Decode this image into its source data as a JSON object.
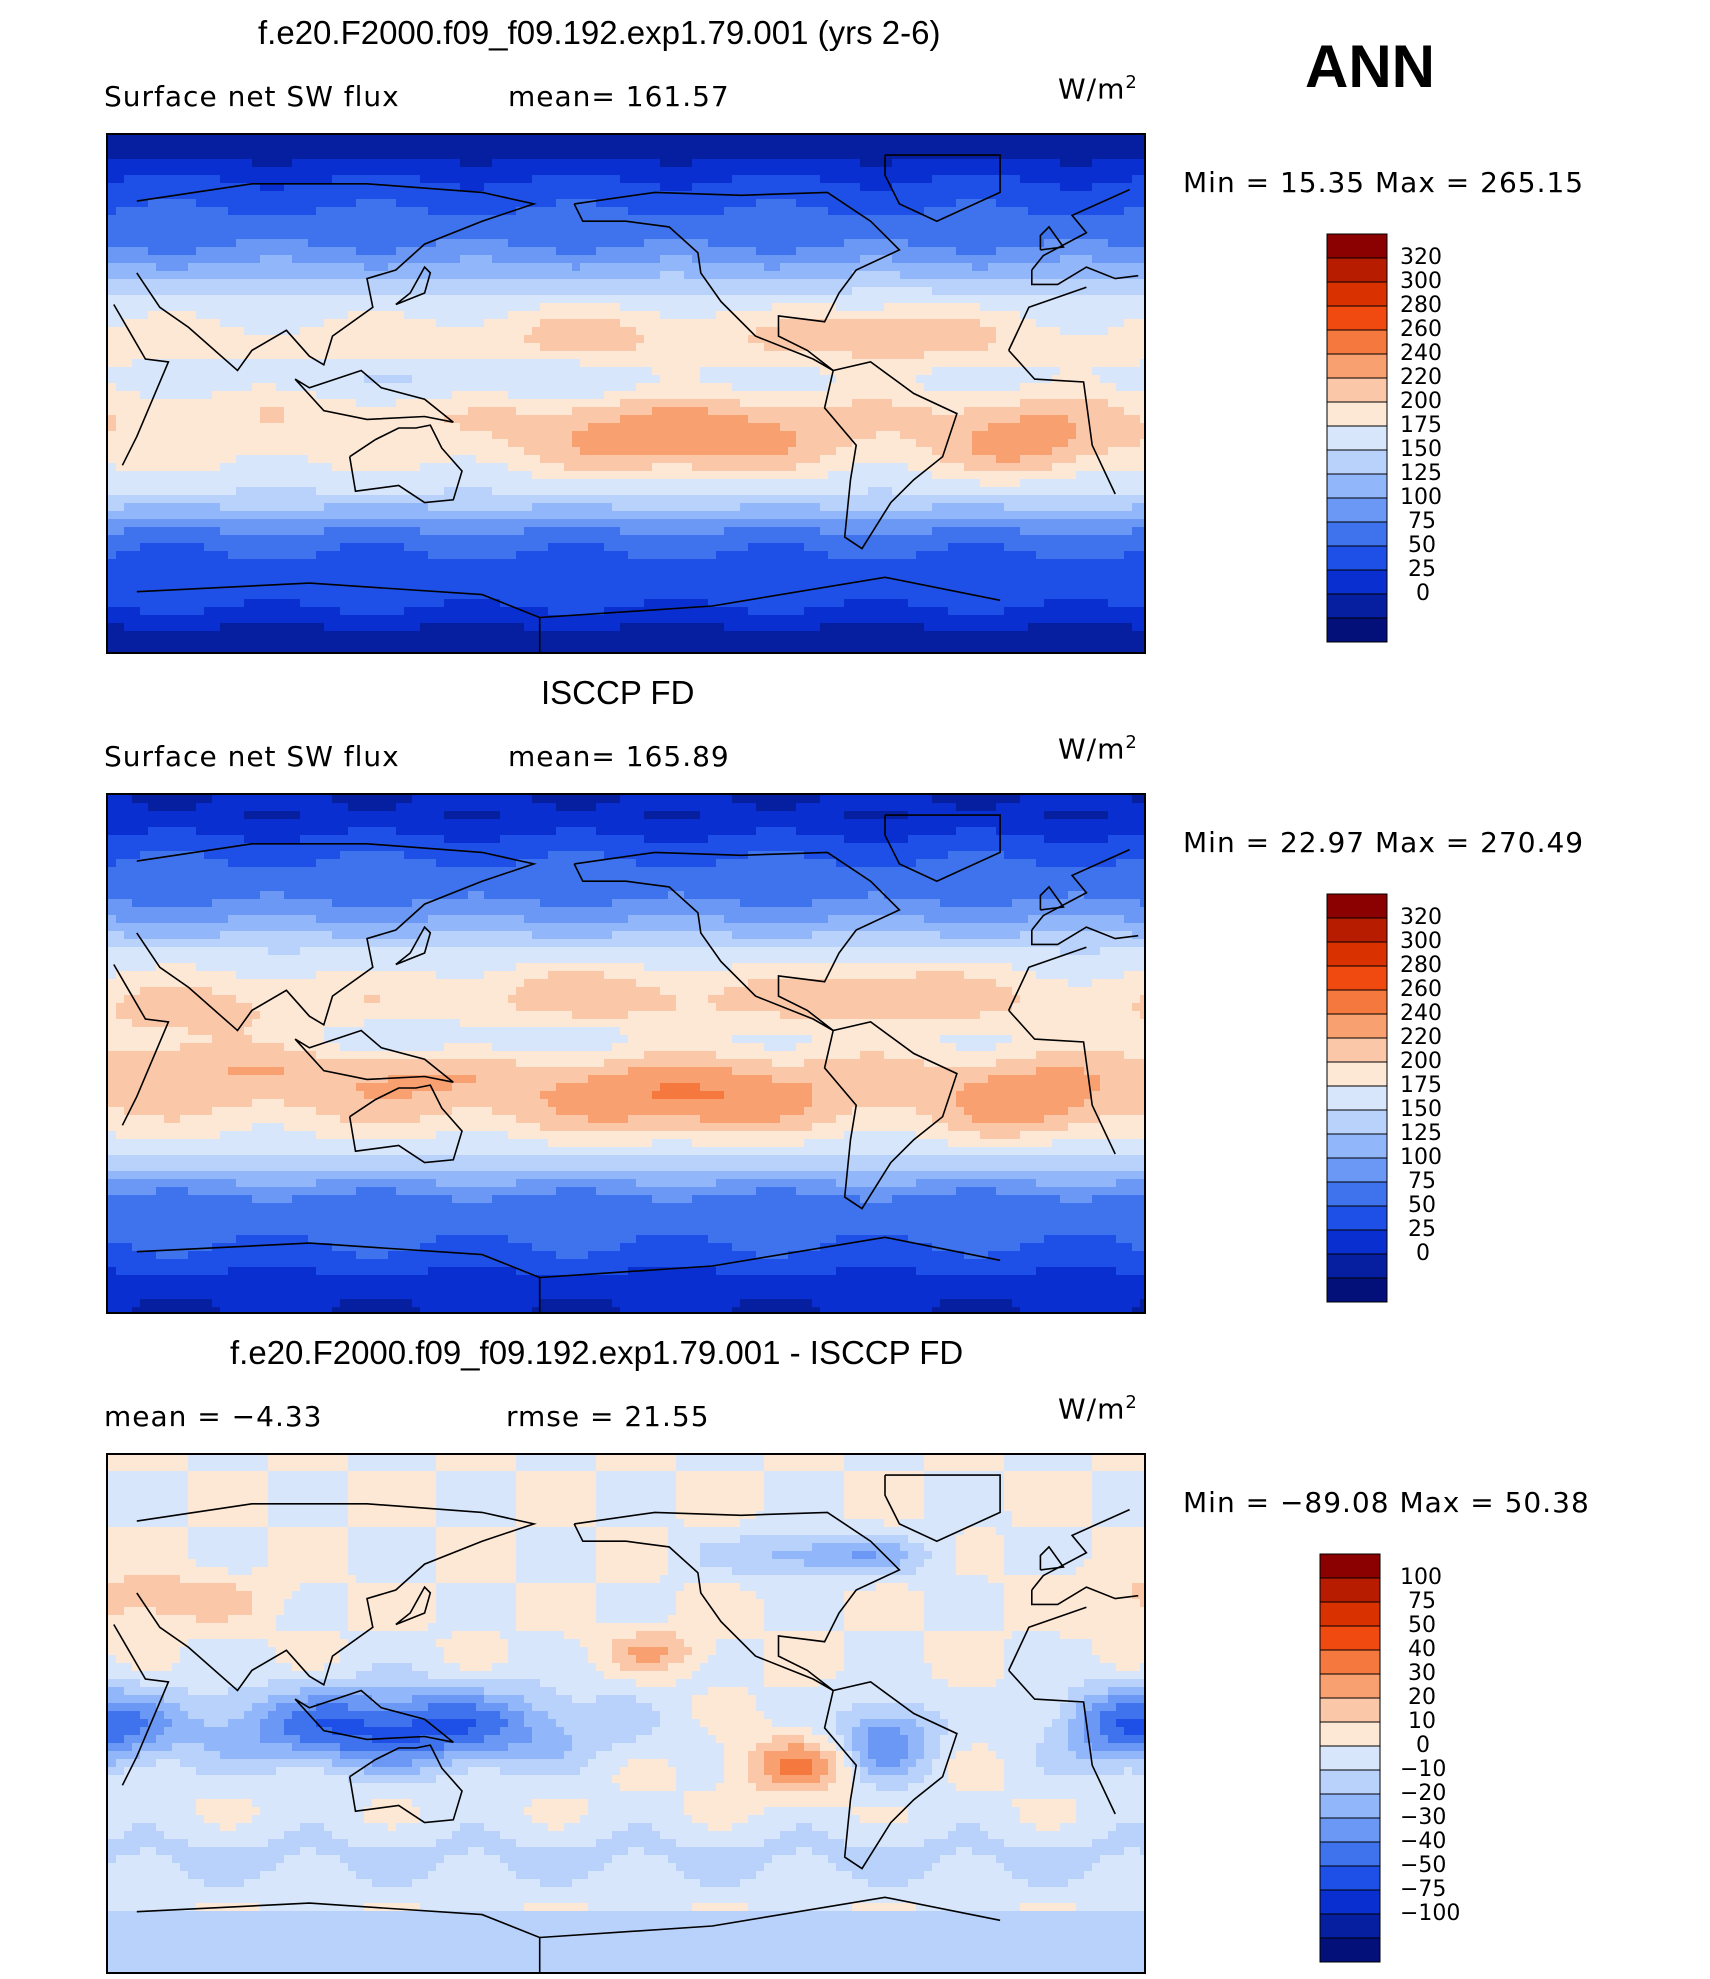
{
  "season": "ANN",
  "panels": [
    {
      "title": "f.e20.F2000.f09_f09.192.exp1.79.001 (yrs 2-6)",
      "variable": "Surface net SW flux",
      "stat1": "mean=  161.57",
      "stat2": "",
      "units": "W/m",
      "units_sup": "2",
      "minmax": "Min  =    15.35  Max  =  265.15"
    },
    {
      "title": "ISCCP FD",
      "variable": "Surface net SW flux",
      "stat1": "mean=  165.89",
      "stat2": "",
      "units": "W/m",
      "units_sup": "2",
      "minmax": "Min  =    22.97  Max  =  270.49"
    },
    {
      "title": "f.e20.F2000.f09_f09.192.exp1.79.001 - ISCCP FD",
      "variable": "mean  =    −4.33",
      "stat1": "rmse  =    21.55",
      "stat2": "",
      "units": "W/m",
      "units_sup": "2",
      "minmax": "Min  = −89.08  Max  =    50.38"
    }
  ],
  "chart_data": [
    {
      "type": "heatmap",
      "title": "f.e20.F2000.f09_f09.192.exp1.79.001 (yrs 2-6)",
      "subtitle": "Surface net SW flux",
      "mean": 161.57,
      "min": 15.35,
      "max": 265.15,
      "units": "W/m2",
      "colorbar_levels": [
        "320",
        "300",
        "280",
        "260",
        "240",
        "220",
        "200",
        "175",
        "150",
        "125",
        "100",
        "75",
        "50",
        "25",
        "0"
      ],
      "colorbar_colors": [
        "#8b0000",
        "#b71c00",
        "#d93100",
        "#f04a10",
        "#f5793e",
        "#f8a070",
        "#fac8a8",
        "#fde8d6",
        "#d7e6fa",
        "#b9d2fb",
        "#91b6fa",
        "#6b98f5",
        "#3f73ee",
        "#1e50e8",
        "#0a2fd0",
        "#061fa0",
        "#03107a"
      ]
    },
    {
      "type": "heatmap",
      "title": "ISCCP FD",
      "subtitle": "Surface net SW flux",
      "mean": 165.89,
      "min": 22.97,
      "max": 270.49,
      "units": "W/m2",
      "colorbar_levels": [
        "320",
        "300",
        "280",
        "260",
        "240",
        "220",
        "200",
        "175",
        "150",
        "125",
        "100",
        "75",
        "50",
        "25",
        "0"
      ],
      "colorbar_colors": [
        "#8b0000",
        "#b71c00",
        "#d93100",
        "#f04a10",
        "#f5793e",
        "#f8a070",
        "#fac8a8",
        "#fde8d6",
        "#d7e6fa",
        "#b9d2fb",
        "#91b6fa",
        "#6b98f5",
        "#3f73ee",
        "#1e50e8",
        "#0a2fd0",
        "#061fa0",
        "#03107a"
      ]
    },
    {
      "type": "heatmap",
      "title": "f.e20.F2000.f09_f09.192.exp1.79.001 - ISCCP FD",
      "mean": -4.33,
      "rmse": 21.55,
      "min": -89.08,
      "max": 50.38,
      "units": "W/m2",
      "colorbar_levels": [
        "100",
        "75",
        "50",
        "40",
        "30",
        "20",
        "10",
        "0",
        "−10",
        "−20",
        "−30",
        "−40",
        "−50",
        "−75",
        "−100"
      ],
      "colorbar_colors": [
        "#8b0000",
        "#b71c00",
        "#d93100",
        "#f04a10",
        "#f5793e",
        "#f8a070",
        "#fac8a8",
        "#fde8d6",
        "#d7e6fa",
        "#b9d2fb",
        "#91b6fa",
        "#6b98f5",
        "#3f73ee",
        "#1e50e8",
        "#0a2fd0",
        "#061fa0",
        "#03107a"
      ]
    }
  ]
}
